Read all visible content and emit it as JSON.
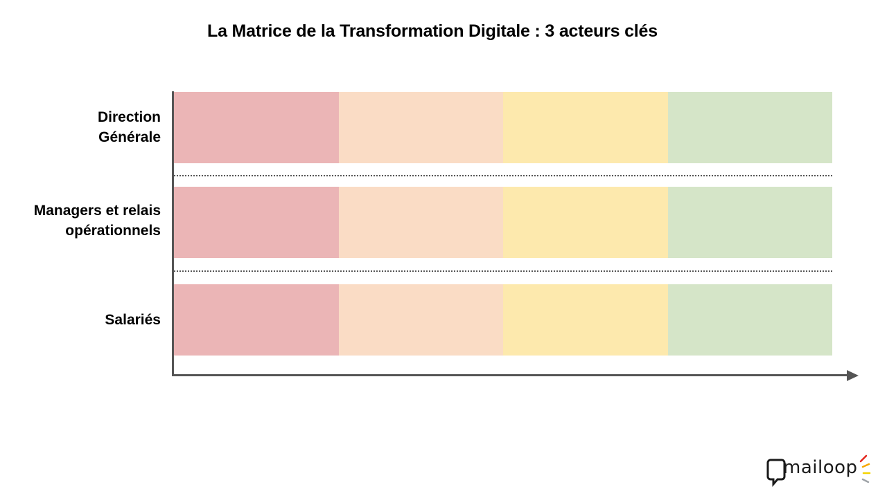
{
  "title": "La Matrice de la Transformation Digitale : 3 acteurs clés",
  "stage_colors": [
    "#ebb5b6",
    "#fadcc5",
    "#fde9ad",
    "#d5e5c8"
  ],
  "axis_color": "#555555",
  "rows": [
    {
      "label_lines": [
        "Direction",
        "Générale"
      ]
    },
    {
      "label_lines": [
        "Managers et relais",
        "opérationnels"
      ]
    },
    {
      "label_lines": [
        "Salariés"
      ]
    }
  ],
  "logo": {
    "text": "mailoop",
    "accent_colors": [
      "#e2231a",
      "#f6a800",
      "#f5d400",
      "#9ea3a8"
    ]
  }
}
